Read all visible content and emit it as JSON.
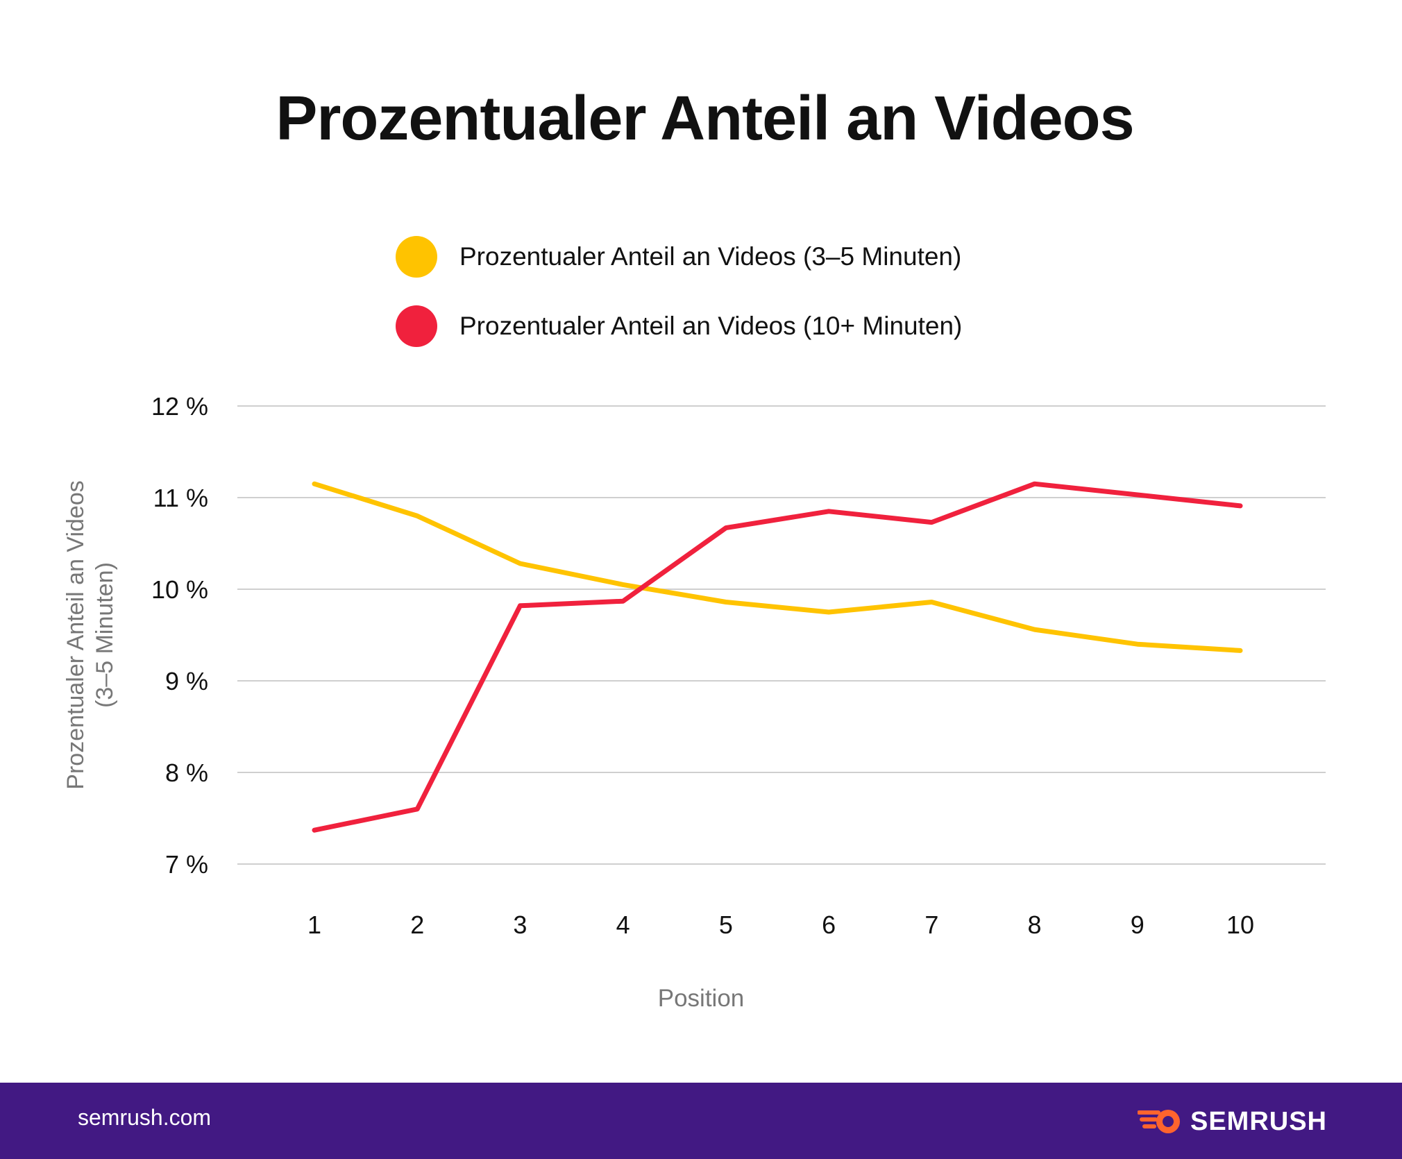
{
  "title": "Prozentualer Anteil an Videos",
  "colors": {
    "series1": "#FFC300",
    "series2": "#F0213D",
    "grid": "#CFCFCF",
    "footer": "#421983",
    "brand_icon": "#FF642D"
  },
  "chart_data": {
    "type": "line",
    "title": "Prozentualer Anteil an Videos",
    "xlabel": "Position",
    "ylabel": "Prozentualer Anteil an Videos (3–5 Minuten)",
    "ylabel_lines": [
      "Prozentualer Anteil an Videos",
      "(3–5 Minuten)"
    ],
    "categories": [
      "1",
      "2",
      "3",
      "4",
      "5",
      "6",
      "7",
      "8",
      "9",
      "10"
    ],
    "ylim": [
      7,
      12
    ],
    "yticks": [
      7,
      8,
      9,
      10,
      11,
      12
    ],
    "ytick_labels": [
      "7 %",
      "8 %",
      "9 %",
      "10 %",
      "11 %",
      "12 %"
    ],
    "grid": true,
    "legend_position": "top",
    "series": [
      {
        "name": "Prozentualer Anteil an Videos (3–5 Minuten)",
        "color": "#FFC300",
        "values": [
          11.15,
          10.8,
          10.28,
          10.05,
          9.86,
          9.75,
          9.86,
          9.56,
          9.4,
          9.33
        ]
      },
      {
        "name": "Prozentualer Anteil an Videos (10+ Minuten)",
        "color": "#F0213D",
        "values": [
          7.37,
          7.6,
          9.82,
          9.87,
          10.67,
          10.85,
          10.73,
          11.15,
          11.03,
          10.91
        ]
      }
    ]
  },
  "footer": {
    "url": "semrush.com",
    "brand": "SEMRUSH",
    "brand_icon": "semrush-logo-icon"
  }
}
